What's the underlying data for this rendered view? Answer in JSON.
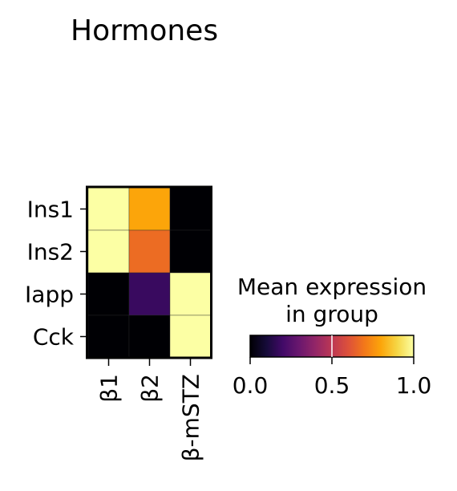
{
  "chart_data": {
    "type": "heatmap",
    "title": "Hormones",
    "rows": [
      "Ins1",
      "Ins2",
      "Iapp",
      "Cck"
    ],
    "columns": [
      "β1",
      "β2",
      "β-mSTZ"
    ],
    "values": [
      [
        1.0,
        0.8,
        0.0
      ],
      [
        1.0,
        0.67,
        0.0
      ],
      [
        0.0,
        0.18,
        1.0
      ],
      [
        0.0,
        0.0,
        1.0
      ]
    ],
    "colormap": "inferno",
    "colorbar": {
      "title_line1": "Mean expression",
      "title_line2": "in group",
      "range": [
        0,
        1
      ],
      "ticks": [
        "0.0",
        "0.5",
        "1.0"
      ],
      "tick_values": [
        0,
        0.5,
        1.0
      ]
    }
  }
}
